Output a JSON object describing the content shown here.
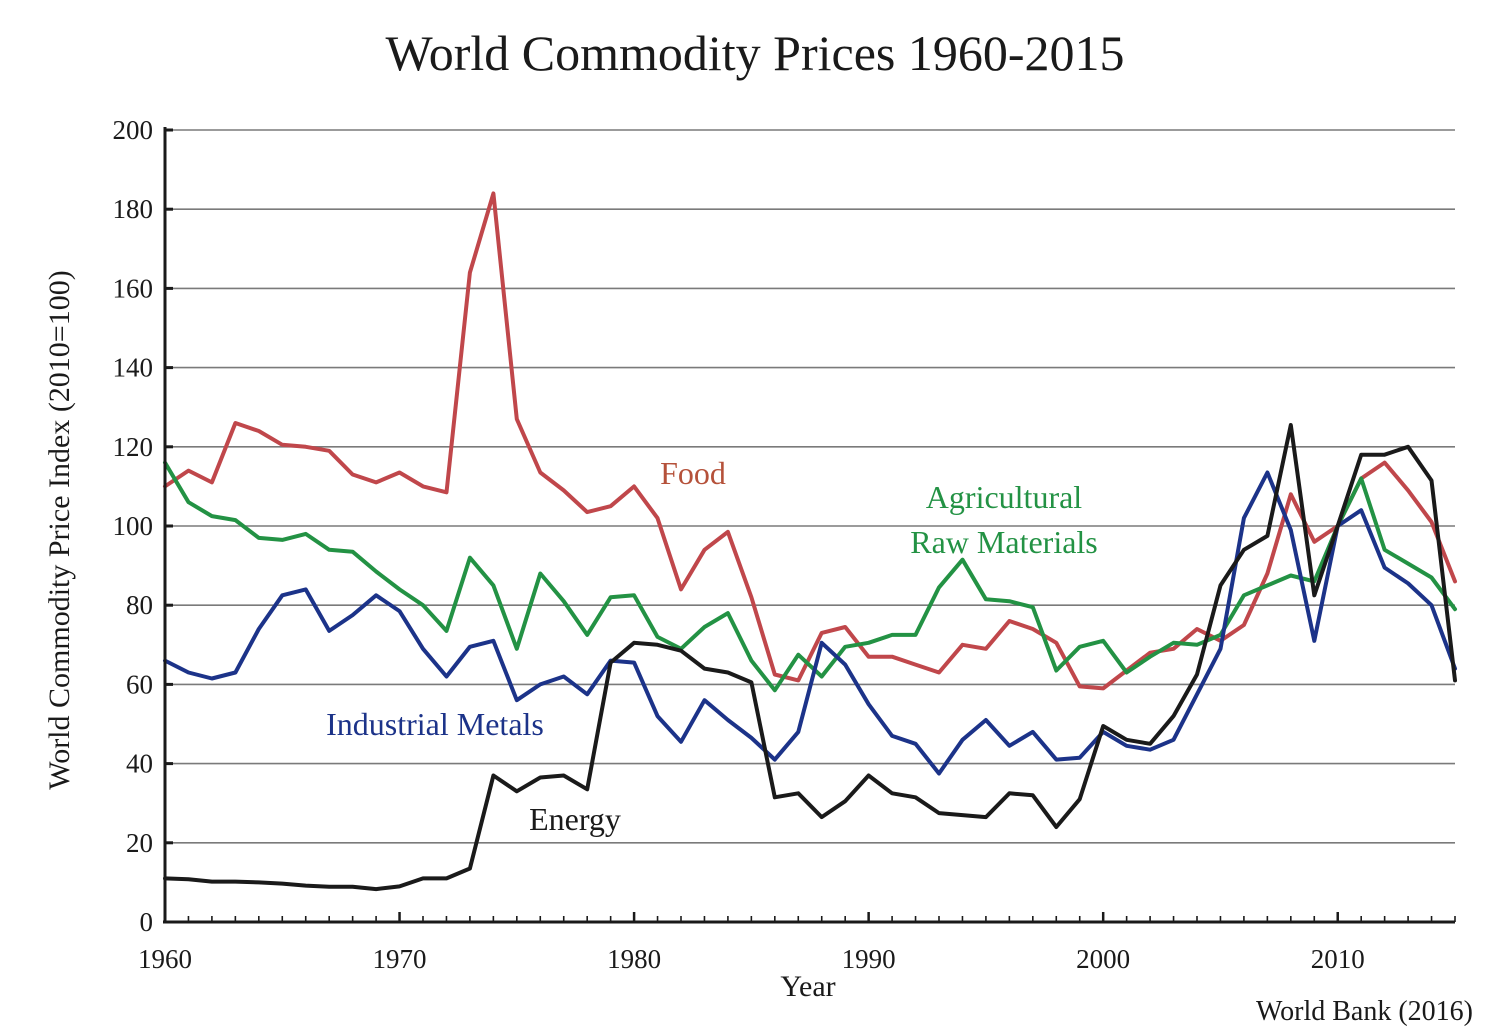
{
  "chart_data": {
    "type": "line",
    "title": "World Commodity Prices 1960-2015",
    "xlabel": "Year",
    "ylabel": "World Commodity Price Index (2010=100)",
    "source": "World Bank (2016)",
    "xlim": [
      1960,
      2015
    ],
    "ylim": [
      0,
      200
    ],
    "xticks": [
      1960,
      1970,
      1980,
      1990,
      2000,
      2010
    ],
    "yticks": [
      0,
      20,
      40,
      60,
      80,
      100,
      120,
      140,
      160,
      180,
      200
    ],
    "grid": true,
    "x": [
      1960,
      1961,
      1962,
      1963,
      1964,
      1965,
      1966,
      1967,
      1968,
      1969,
      1970,
      1971,
      1972,
      1973,
      1974,
      1975,
      1976,
      1977,
      1978,
      1979,
      1980,
      1981,
      1982,
      1983,
      1984,
      1985,
      1986,
      1987,
      1988,
      1989,
      1990,
      1991,
      1992,
      1993,
      1994,
      1995,
      1996,
      1997,
      1998,
      1999,
      2000,
      2001,
      2002,
      2003,
      2004,
      2005,
      2006,
      2007,
      2008,
      2009,
      2010,
      2011,
      2012,
      2013,
      2014,
      2015
    ],
    "series": [
      {
        "name": "Food",
        "color": "#c0474b",
        "values": [
          110,
          114,
          111,
          126,
          124,
          120.5,
          120,
          119,
          113,
          111,
          113.5,
          110,
          108.5,
          164,
          184,
          127,
          113.5,
          109,
          103.5,
          105,
          110,
          102,
          84,
          94,
          98.5,
          82,
          62.5,
          61,
          73,
          74.5,
          67,
          67,
          65,
          63,
          70,
          69,
          76,
          74,
          70.5,
          59.5,
          59,
          63.5,
          68,
          69,
          74,
          71,
          75,
          88,
          108,
          96,
          100,
          112,
          116,
          109,
          101,
          86
        ]
      },
      {
        "name": "Agricultural Raw Materials",
        "color": "#239244",
        "values": [
          116,
          106,
          102.5,
          101.5,
          97,
          96.5,
          98,
          94,
          93.5,
          88.5,
          84,
          80,
          73.5,
          92,
          85,
          69,
          88,
          81,
          72.5,
          82,
          82.5,
          72,
          69,
          74.5,
          78,
          66,
          58.5,
          67.5,
          62,
          69.5,
          70.5,
          72.5,
          72.5,
          84.5,
          91.5,
          81.5,
          81,
          79.5,
          63.5,
          69.5,
          71,
          63,
          67,
          70.5,
          70,
          72.5,
          82.5,
          85,
          87.5,
          86,
          100,
          112,
          94,
          90.5,
          87,
          79
        ]
      },
      {
        "name": "Industrial Metals",
        "color": "#1c3389",
        "values": [
          66,
          63,
          61.5,
          63,
          74,
          82.5,
          84,
          73.5,
          77.5,
          82.5,
          78.5,
          69,
          62,
          69.5,
          71,
          56,
          60,
          62,
          57.5,
          66,
          65.5,
          52,
          45.5,
          56,
          51,
          46.5,
          41,
          48,
          70.5,
          65,
          55,
          47,
          45,
          37.5,
          46,
          51,
          44.5,
          48,
          41,
          41.5,
          48,
          44.5,
          43.5,
          46,
          57.5,
          69,
          102,
          113.5,
          99,
          71,
          100,
          104,
          89.5,
          85.5,
          80,
          64
        ]
      },
      {
        "name": "Energy",
        "color": "#1a1a1a",
        "values": [
          11,
          10.8,
          10.2,
          10.2,
          10,
          9.7,
          9.2,
          8.9,
          8.9,
          8.3,
          9,
          11,
          11,
          13.5,
          37,
          33,
          36.5,
          37,
          33.5,
          65.5,
          70.5,
          70,
          68.5,
          64,
          63,
          60.5,
          31.5,
          32.5,
          26.5,
          30.5,
          37,
          32.5,
          31.5,
          27.5,
          27,
          26.5,
          32.5,
          32,
          24,
          31,
          49.5,
          46,
          45,
          52,
          62.5,
          85,
          94,
          97.5,
          125.5,
          82.5,
          100,
          118,
          118,
          120,
          111.5,
          61
        ]
      }
    ],
    "annotations": [
      {
        "text": "Food",
        "series": "Food"
      },
      {
        "text": "Agricultural",
        "series": "Agricultural Raw Materials"
      },
      {
        "text": "Raw Materials",
        "series": "Agricultural Raw Materials"
      },
      {
        "text": "Industrial Metals",
        "series": "Industrial Metals"
      },
      {
        "text": "Energy",
        "series": "Energy"
      }
    ]
  }
}
